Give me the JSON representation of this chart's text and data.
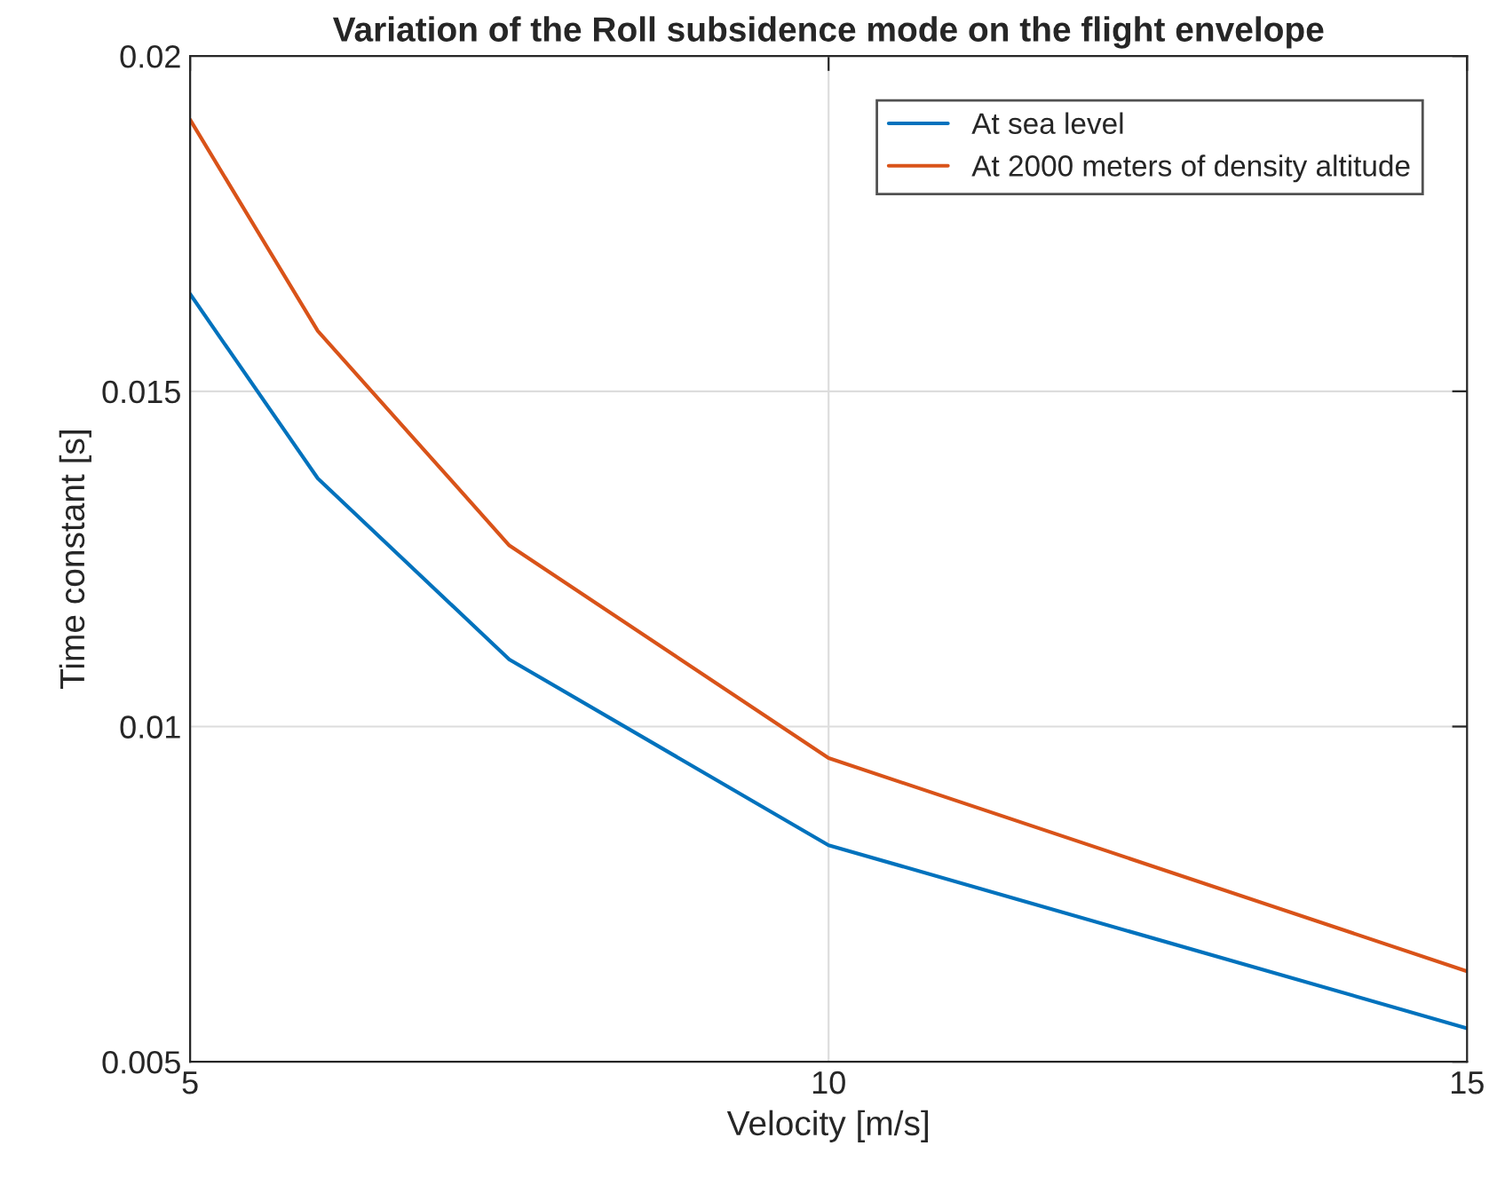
{
  "chart_data": {
    "type": "line",
    "title": "Variation of the Roll subsidence mode on the flight envelope",
    "xlabel": "Velocity [m/s]",
    "ylabel": "Time constant [s]",
    "x": [
      5,
      6,
      7.5,
      10,
      15
    ],
    "series": [
      {
        "name": "At sea level",
        "color": "#0072bd",
        "values": [
          0.01645,
          0.0137,
          0.011,
          0.00823,
          0.0055
        ]
      },
      {
        "name": "At 2000 meters of density altitude",
        "color": "#d95319",
        "values": [
          0.01905,
          0.0159,
          0.0127,
          0.00953,
          0.00635
        ]
      }
    ],
    "xlim": [
      5,
      15
    ],
    "xticks": [
      5,
      10,
      15
    ],
    "ylim": [
      0.005,
      0.02
    ],
    "yticks": [
      0.005,
      0.01,
      0.015,
      0.02
    ],
    "grid": true,
    "legend": "top right"
  }
}
